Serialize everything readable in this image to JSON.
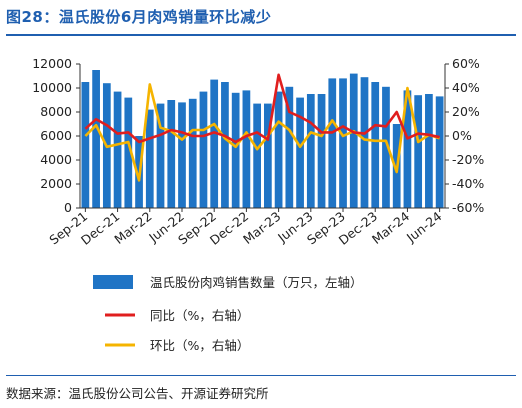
{
  "figure": {
    "title": "图28：温氏股份6月肉鸡销量环比减少",
    "source": "数据来源：温氏股份公司公告、开源证券研究所"
  },
  "colors": {
    "bar": "#1f74c5",
    "yoy_line": "#e01e1e",
    "mom_line": "#f5b400",
    "accent": "#1f5fb0"
  },
  "chart_data": {
    "type": "bar",
    "categories": [
      "Sep-21",
      "Oct-21",
      "Nov-21",
      "Dec-21",
      "Jan-22",
      "Feb-22",
      "Mar-22",
      "Apr-22",
      "May-22",
      "Jun-22",
      "Jul-22",
      "Aug-22",
      "Sep-22",
      "Oct-22",
      "Nov-22",
      "Dec-22",
      "Jan-23",
      "Feb-23",
      "Mar-23",
      "Apr-23",
      "May-23",
      "Jun-23",
      "Jul-23",
      "Aug-23",
      "Sep-23",
      "Oct-23",
      "Nov-23",
      "Dec-23",
      "Jan-24",
      "Feb-24",
      "Mar-24",
      "Apr-24",
      "May-24",
      "Jun-24"
    ],
    "x_tick_labels": [
      "Sep-21",
      "Dec-21",
      "Mar-22",
      "Jun-22",
      "Sep-22",
      "Dec-22",
      "Mar-23",
      "Jun-23",
      "Sep-23",
      "Dec-23",
      "Mar-24",
      "Jun-24"
    ],
    "series": [
      {
        "name": "温氏股份肉鸡销售数量（万只，左轴）",
        "type": "bar",
        "axis": "left",
        "values": [
          10500,
          11500,
          10400,
          9700,
          9200,
          6000,
          8200,
          8700,
          9000,
          8800,
          9100,
          9700,
          10700,
          10500,
          9600,
          9800,
          8700,
          8700,
          9700,
          10100,
          9200,
          9500,
          9500,
          10800,
          10800,
          11200,
          10900,
          10500,
          10100,
          7000,
          9800,
          9400,
          9500,
          9300
        ]
      },
      {
        "name": "同比（%，右轴）",
        "type": "line",
        "axis": "right",
        "values": [
          6,
          14,
          9,
          2,
          3,
          -5,
          -2,
          1,
          5,
          3,
          0,
          0,
          3,
          0,
          -5,
          0,
          3,
          -3,
          51,
          20,
          16,
          11,
          3,
          3,
          8,
          3,
          2,
          9,
          8,
          20,
          -2,
          2,
          1,
          -1
        ]
      },
      {
        "name": "环比（%，右轴）",
        "type": "line",
        "axis": "right",
        "values": [
          0,
          9,
          -9,
          -7,
          -5,
          -37,
          43,
          7,
          4,
          -3,
          5,
          5,
          10,
          -2,
          -9,
          3,
          -11,
          0,
          12,
          5,
          -9,
          3,
          0,
          13,
          0,
          4,
          -3,
          -4,
          -4,
          -30,
          40,
          -5,
          1,
          -2
        ]
      }
    ],
    "y_left": {
      "min": 0,
      "max": 12000,
      "ticks": [
        "0",
        "2000",
        "4000",
        "6000",
        "8000",
        "10000",
        "12000"
      ]
    },
    "y_right": {
      "min": -60,
      "max": 60,
      "ticks": [
        "-60%",
        "-40%",
        "-20%",
        "0%",
        "20%",
        "40%",
        "60%"
      ]
    },
    "legend_position": "bottom",
    "grid": false
  }
}
